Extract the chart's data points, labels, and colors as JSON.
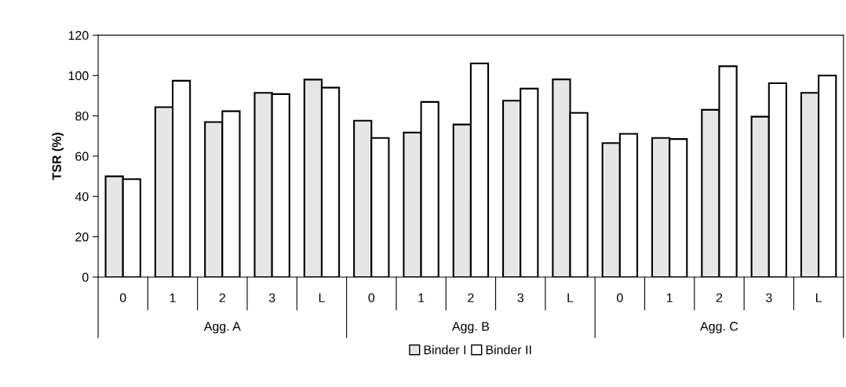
{
  "chart_data": {
    "type": "bar",
    "ylabel": "TSR (%)",
    "categories": [
      "0",
      "1",
      "2",
      "3",
      "L",
      "0",
      "1",
      "2",
      "3",
      "L",
      "0",
      "1",
      "2",
      "3",
      "L"
    ],
    "series": [
      {
        "name": "Binder I",
        "color": "#e6e6e6",
        "values": [
          50,
          84.3,
          76.9,
          91.4,
          98,
          77.6,
          71.7,
          75.7,
          87.5,
          98.1,
          66.5,
          69,
          83,
          79.6,
          91.4
        ]
      },
      {
        "name": "Binder II",
        "color": "#ffffff",
        "values": [
          48.6,
          97.4,
          82.3,
          90.8,
          94,
          69,
          86.9,
          106,
          93.5,
          81.5,
          71.1,
          68.5,
          104.6,
          96.2,
          100
        ]
      }
    ],
    "annotations": [
      "Agg. A",
      "Agg. B",
      "Agg. C"
    ],
    "ylim": [
      0,
      120
    ],
    "yticks": [
      0,
      20,
      40,
      60,
      80,
      100,
      120
    ],
    "grid": false,
    "legend": "bottom"
  }
}
